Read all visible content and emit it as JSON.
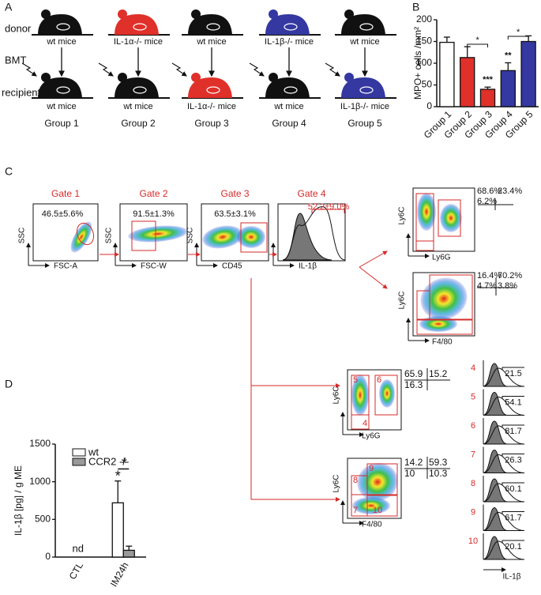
{
  "panel_a": {
    "label": "A",
    "rows": [
      "donor",
      "BMT",
      "recipient"
    ],
    "groups": [
      {
        "donor": "wt mice",
        "recipient": "wt mice",
        "name": "Group 1",
        "donor_color": "#111111",
        "recipient_color": "#111111"
      },
      {
        "donor": "IL-1α-/- mice",
        "recipient": "wt mice",
        "name": "Group 2",
        "donor_color": "#e0302a",
        "recipient_color": "#111111"
      },
      {
        "donor": "wt mice",
        "recipient": "IL-1α-/- mice",
        "name": "Group 3",
        "donor_color": "#111111",
        "recipient_color": "#e0302a"
      },
      {
        "donor": "IL-1β-/- mice",
        "recipient": "wt mice",
        "name": "Group 4",
        "donor_color": "#3438a0",
        "recipient_color": "#111111"
      },
      {
        "donor": "wt mice",
        "recipient": "IL-1β-/- mice",
        "name": "Group 5",
        "donor_color": "#111111",
        "recipient_color": "#3438a0"
      }
    ]
  },
  "chart_data": [
    {
      "type": "bar",
      "panel": "B",
      "ylabel": "MPO+ cells /mm²",
      "categories": [
        "Group 1",
        "Group 2",
        "Group 3",
        "Group 4",
        "Group 5"
      ],
      "values": [
        148,
        113,
        40,
        83,
        150
      ],
      "errors": [
        12,
        25,
        5,
        18,
        13
      ],
      "colors": [
        "#ffffff",
        "#e0302a",
        "#e0302a",
        "#3438a0",
        "#3438a0"
      ],
      "ylim": [
        0,
        200
      ],
      "yticks": [
        0,
        50,
        100,
        150,
        200
      ],
      "annotations": [
        "*",
        "***",
        "**",
        "*"
      ]
    },
    {
      "type": "grouped_bar",
      "panel": "D",
      "ylabel": "IL-1β [pg] / g ME",
      "categories": [
        "CTL",
        "IM24h"
      ],
      "series": [
        {
          "name": "wt",
          "color": "#ffffff",
          "values": [
            null,
            720
          ],
          "errors": [
            null,
            290
          ]
        },
        {
          "name": "CCR2 -/-",
          "color": "#999999",
          "values": [
            null,
            90
          ],
          "errors": [
            null,
            55
          ]
        }
      ],
      "ylim": [
        0,
        1500
      ],
      "yticks": [
        0,
        500,
        1000,
        1500
      ],
      "annotations": [
        "nd",
        "*",
        "*"
      ]
    }
  ],
  "panel_c": {
    "label": "C",
    "gates": [
      {
        "name": "Gate 1",
        "pct": "46.5±5.6%",
        "x_label": "FSC-A",
        "y_label": "SSC"
      },
      {
        "name": "Gate 2",
        "pct": "91.5±1.3%",
        "x_label": "FSC-W",
        "y_label": "SSC"
      },
      {
        "name": "Gate 3",
        "pct": "63.5±3.1%",
        "x_label": "CD45",
        "y_label": "SSC"
      },
      {
        "name": "Gate 4",
        "pct": "52.2±9.0%",
        "x_label": "IL-1β"
      }
    ],
    "top_plots": [
      {
        "y_label": "Ly6C",
        "x_label": "Ly6G",
        "quadrants": [
          "68.6%",
          "23.4%",
          "6.2%"
        ]
      },
      {
        "y_label": "Ly6C",
        "x_label": "F4/80",
        "quadrants": [
          "16.4%",
          "70.2%",
          "4.7%",
          "3.8%"
        ]
      }
    ],
    "bottom_plots": [
      {
        "y_label": "Ly6C",
        "x_label": "Ly6G",
        "gates": [
          "5",
          "6",
          "4"
        ],
        "quadrants": [
          "65.9",
          "15.2",
          "16.3"
        ]
      },
      {
        "y_label": "Ly6C",
        "x_label": "F4/80",
        "gates": [
          "8",
          "9",
          "7",
          "10"
        ],
        "quadrants": [
          "14.2",
          "59.3",
          "10",
          "10.3"
        ]
      }
    ],
    "histograms": {
      "gates": [
        "4",
        "5",
        "6",
        "7",
        "8",
        "9",
        "10"
      ],
      "values": [
        "21.5",
        "54.1",
        "81.7",
        "26.3",
        "60.1",
        "61.7",
        "20.1"
      ],
      "x_label": "IL-1β"
    }
  }
}
